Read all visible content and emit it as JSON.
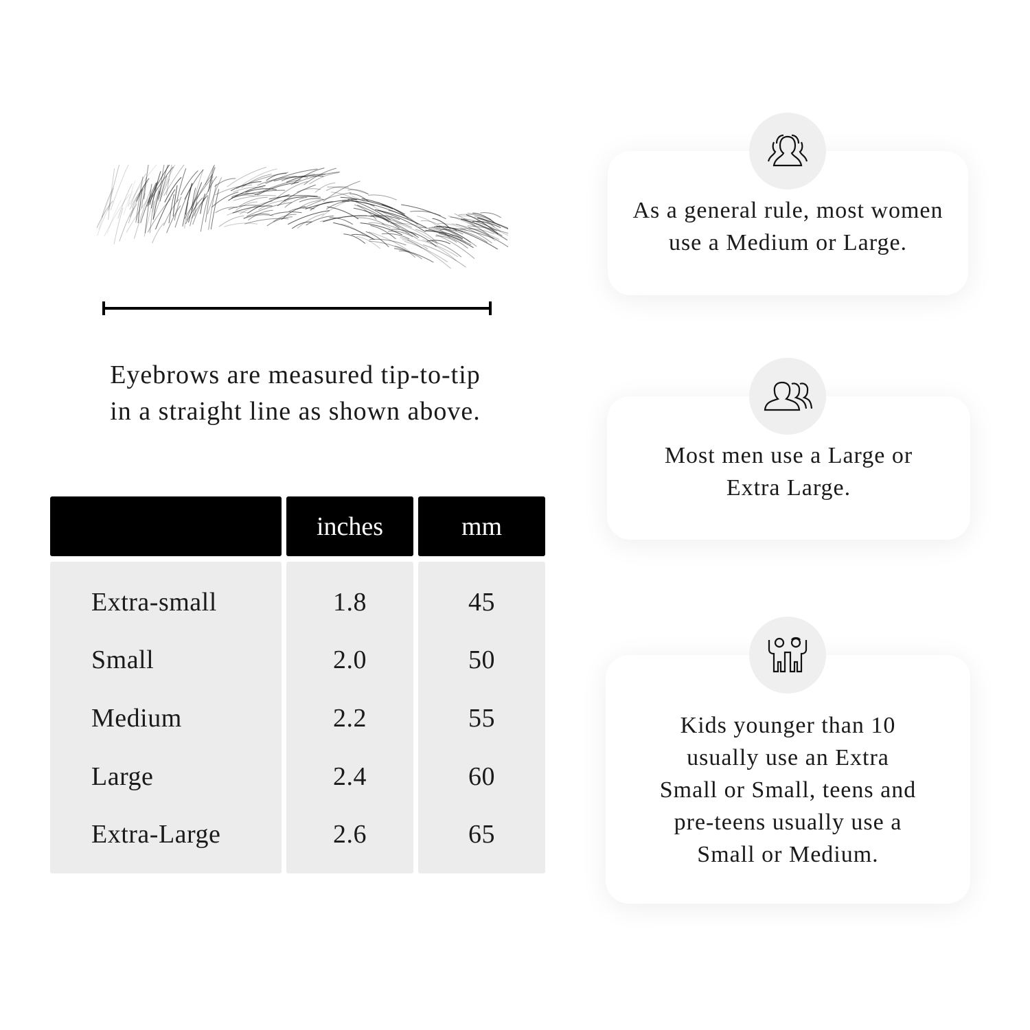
{
  "measurement": {
    "caption_line1": "Eyebrows are measured tip-to-tip",
    "caption_line2": "in a straight line as shown above."
  },
  "size_table": {
    "columns": [
      "",
      "inches",
      "mm"
    ],
    "rows": [
      {
        "size": "Extra-small",
        "inches": "1.8",
        "mm": "45"
      },
      {
        "size": "Small",
        "inches": "2.0",
        "mm": "50"
      },
      {
        "size": "Medium",
        "inches": "2.2",
        "mm": "55"
      },
      {
        "size": "Large",
        "inches": "2.4",
        "mm": "60"
      },
      {
        "size": "Extra-Large",
        "inches": "2.6",
        "mm": "65"
      }
    ]
  },
  "tips": [
    {
      "icon": "women-group-icon",
      "line1": "As a general rule, most women",
      "line2": "use a Medium or Large."
    },
    {
      "icon": "men-group-icon",
      "line1": "Most men use a Large or",
      "line2": "Extra Large."
    },
    {
      "icon": "kids-icon",
      "line1": "Kids younger than 10",
      "line2": "usually use an Extra",
      "line3": "Small or Small, teens and",
      "line4": "pre-teens usually use a",
      "line5": "Small or Medium."
    }
  ]
}
